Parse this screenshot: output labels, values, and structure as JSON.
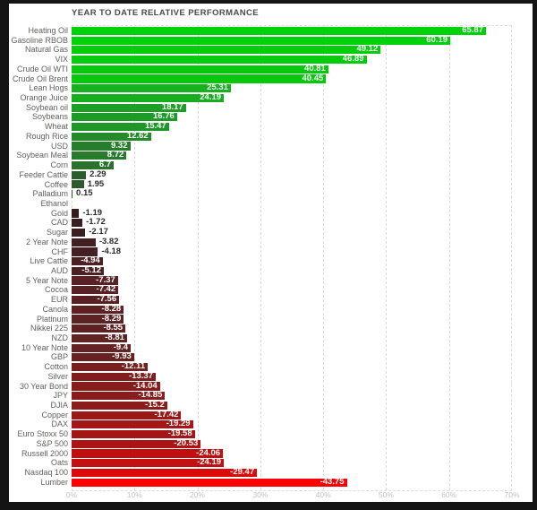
{
  "window": {
    "frame_color": "#141414",
    "background_color": "#ffffff"
  },
  "styles": {
    "title_color": "#4a4a4a",
    "category_label_color": "#615f5c",
    "tick_label_color": "#c1c1c6",
    "value_inside_color": "#ffffff",
    "value_outside_color": "#2b2b2b",
    "gridline_color": "#d9d9d9",
    "positive_max_color": "#00d20a",
    "negative_max_color": "#fa0202",
    "near_zero_color": "#2e2e2e"
  },
  "chart_data": {
    "type": "bar",
    "orientation": "horizontal",
    "title": "YEAR TO DATE RELATIVE PERFORMANCE",
    "value_unit": "percent",
    "legend": "none",
    "grid": "vertical dashed gridlines every 10%",
    "encoding_note": "bar length encodes absolute value; green = positive, red = negative, brightness scales with magnitude",
    "x_axis": {
      "min": 0,
      "max": 70,
      "ticks": [
        "0%",
        "10%",
        "20%",
        "30%",
        "40%",
        "50%",
        "60%",
        "70%"
      ]
    },
    "items": [
      {
        "label": "Heating Oil",
        "value": 65.87,
        "color": "#00d20a"
      },
      {
        "label": "Gasoline RBOB",
        "value": 60.19,
        "color": "#01d10a"
      },
      {
        "label": "Natural Gas",
        "value": 49.12,
        "color": "#04cd0b"
      },
      {
        "label": "VIX",
        "value": 46.89,
        "color": "#05cc0c"
      },
      {
        "label": "Crude Oil WTI",
        "value": 40.81,
        "color": "#08c80d"
      },
      {
        "label": "Crude Oil Brent",
        "value": 40.45,
        "color": "#08c80d"
      },
      {
        "label": "Lean Hogs",
        "value": 25.31,
        "color": "#15b11e"
      },
      {
        "label": "Orange Juice",
        "value": 24.19,
        "color": "#16ae1e"
      },
      {
        "label": "Soybean oil",
        "value": 18.17,
        "color": "#1c9f24"
      },
      {
        "label": "Soybeans",
        "value": 16.76,
        "color": "#1e9a26"
      },
      {
        "label": "Wheat",
        "value": 15.47,
        "color": "#209528"
      },
      {
        "label": "Rough Rice",
        "value": 12.62,
        "color": "#238b2a"
      },
      {
        "label": "USD",
        "value": 9.32,
        "color": "#267e2c"
      },
      {
        "label": "Soybean Meal",
        "value": 8.72,
        "color": "#277b2c"
      },
      {
        "label": "Corn",
        "value": 6.7,
        "color": "#29732d"
      },
      {
        "label": "Feeder Cattle",
        "value": 2.29,
        "color": "#2b5c2c"
      },
      {
        "label": "Coffee",
        "value": 1.95,
        "color": "#2b5a2c"
      },
      {
        "label": "Palladium",
        "value": 0.15,
        "color": "#2a512b"
      },
      {
        "label": "Ethanol",
        "value": null,
        "color": null
      },
      {
        "label": "Gold",
        "value": -1.19,
        "color": "#351d1f"
      },
      {
        "label": "CAD",
        "value": -1.72,
        "color": "#371e20"
      },
      {
        "label": "Sugar",
        "value": -2.17,
        "color": "#3a1e20"
      },
      {
        "label": "2 Year Note",
        "value": -3.82,
        "color": "#431f22"
      },
      {
        "label": "CHF",
        "value": -4.18,
        "color": "#452022"
      },
      {
        "label": "Live Cattle",
        "value": -4.94,
        "color": "#4a2023"
      },
      {
        "label": "AUD",
        "value": -5.12,
        "color": "#4b2023"
      },
      {
        "label": "5 Year Note",
        "value": -7.37,
        "color": "#582124"
      },
      {
        "label": "Cocoa",
        "value": -7.42,
        "color": "#582124"
      },
      {
        "label": "EUR",
        "value": -7.56,
        "color": "#592124"
      },
      {
        "label": "Canola",
        "value": -8.28,
        "color": "#5d2224"
      },
      {
        "label": "Platinum",
        "value": -8.29,
        "color": "#5d2224"
      },
      {
        "label": "Nikkei 225",
        "value": -8.55,
        "color": "#5f2223"
      },
      {
        "label": "NZD",
        "value": -8.81,
        "color": "#602223"
      },
      {
        "label": "10 Year Note",
        "value": -9.4,
        "color": "#642222"
      },
      {
        "label": "GBP",
        "value": -9.93,
        "color": "#682121"
      },
      {
        "label": "Cotton",
        "value": -12.11,
        "color": "#781f1f"
      },
      {
        "label": "Silver",
        "value": -13.37,
        "color": "#801e1e"
      },
      {
        "label": "30 Year Bond",
        "value": -14.04,
        "color": "#851d1d"
      },
      {
        "label": "JPY",
        "value": -14.85,
        "color": "#8a1c1c"
      },
      {
        "label": "DJIA",
        "value": -15.2,
        "color": "#8c1b1b"
      },
      {
        "label": "Copper",
        "value": -17.42,
        "color": "#9a1818"
      },
      {
        "label": "DAX",
        "value": -19.29,
        "color": "#a51616"
      },
      {
        "label": "Euro Stoxx 50",
        "value": -19.58,
        "color": "#a61515"
      },
      {
        "label": "S&P 500",
        "value": -20.53,
        "color": "#ac1414"
      },
      {
        "label": "Russell 2000",
        "value": -24.06,
        "color": "#c10f0f"
      },
      {
        "label": "Oats",
        "value": -24.19,
        "color": "#c20f0f"
      },
      {
        "label": "Nasdaq 100",
        "value": -29.47,
        "color": "#dd0808"
      },
      {
        "label": "Lumber",
        "value": -43.75,
        "color": "#fa0202"
      }
    ]
  }
}
